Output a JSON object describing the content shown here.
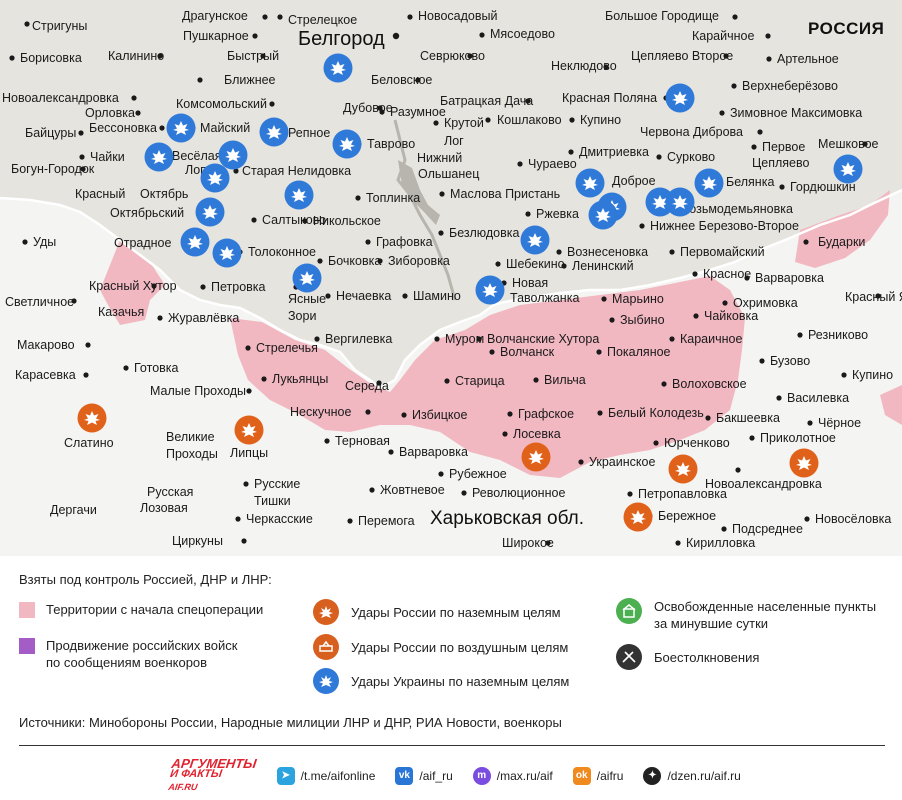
{
  "map": {
    "title_city": "Белгород",
    "region": "Харьковская обл.",
    "country": "РОССИЯ",
    "colors": {
      "territory": "#f2b8c2",
      "ukraine_strike": "#2f7ad8",
      "russia_strike": "#e0621a",
      "land": "#e6e4de",
      "outside": "#f4f4f2"
    },
    "places": [
      {
        "name": "Стригуны"
      },
      {
        "name": "Драгунское"
      },
      {
        "name": "Стрелецкое"
      },
      {
        "name": "Новосадовый"
      },
      {
        "name": "Большое Городище"
      },
      {
        "name": "Калинино"
      },
      {
        "name": "Пушкарное"
      },
      {
        "name": "Мясоедово"
      },
      {
        "name": "Карайчное"
      },
      {
        "name": "Борисовка"
      },
      {
        "name": "Быстрый"
      },
      {
        "name": "Севрюково"
      },
      {
        "name": "Неклюдово"
      },
      {
        "name": "Цепляево Второе"
      },
      {
        "name": "Артельное"
      },
      {
        "name": "Ближнее"
      },
      {
        "name": "Беловское"
      },
      {
        "name": "Верхнеберёзово"
      },
      {
        "name": "Новоалександровка"
      },
      {
        "name": "Комсомольский"
      },
      {
        "name": "Батрацкая Дача"
      },
      {
        "name": "Красная Поляна"
      },
      {
        "name": "Орловка"
      },
      {
        "name": "Дубовое"
      },
      {
        "name": "Разумное"
      },
      {
        "name": "Зимовное Максимовка"
      },
      {
        "name": "Бессоновка"
      },
      {
        "name": "Майский"
      },
      {
        "name": "Крутой"
      },
      {
        "name": "Кошлаково"
      },
      {
        "name": "Купино"
      },
      {
        "name": "Байцуры"
      },
      {
        "name": "Репное"
      },
      {
        "name": "Лог"
      },
      {
        "name": "Червона Диброва"
      },
      {
        "name": "Чайки"
      },
      {
        "name": "Весёлая"
      },
      {
        "name": "Тавровo"
      },
      {
        "name": "Нижний"
      },
      {
        "name": "Дмитриевка"
      },
      {
        "name": "Мешковое"
      },
      {
        "name": "Богун-Городок"
      },
      {
        "name": "Лопань"
      },
      {
        "name": "Старая Нелидовка"
      },
      {
        "name": "Ольшанец"
      },
      {
        "name": "Чураево"
      },
      {
        "name": "Сурково"
      },
      {
        "name": "Первое"
      },
      {
        "name": "Цепляево"
      },
      {
        "name": "Доброе"
      },
      {
        "name": "Белянка"
      },
      {
        "name": "Гордюшкин"
      },
      {
        "name": "Красный"
      },
      {
        "name": "Октябрь"
      },
      {
        "name": "Топлинка"
      },
      {
        "name": "Маслова Пристань"
      },
      {
        "name": "Октябрьский"
      },
      {
        "name": "Салтыково"
      },
      {
        "name": "Никольское"
      },
      {
        "name": "Ржевка"
      },
      {
        "name": "Козьмодемьяновка"
      },
      {
        "name": "Нижнее Березово-Второе"
      },
      {
        "name": "Уды"
      },
      {
        "name": "Отрадное"
      },
      {
        "name": "Толоконное"
      },
      {
        "name": "Графовка"
      },
      {
        "name": "Безлюдовка"
      },
      {
        "name": "Вознесеновка"
      },
      {
        "name": "Бударки"
      },
      {
        "name": "Первомайский"
      },
      {
        "name": "Шебекино"
      },
      {
        "name": "Бочковка"
      },
      {
        "name": "Зиборовка"
      },
      {
        "name": "Ленинский"
      },
      {
        "name": "Красное"
      },
      {
        "name": "Варваровка"
      },
      {
        "name": "Красный Хутор"
      },
      {
        "name": "Петровка"
      },
      {
        "name": "Ясные"
      },
      {
        "name": "Нечаевка"
      },
      {
        "name": "Шамино"
      },
      {
        "name": "Новая"
      },
      {
        "name": "Таволжанка"
      },
      {
        "name": "Марьино"
      },
      {
        "name": "Охримовка"
      },
      {
        "name": "Красный Яр"
      },
      {
        "name": "Светличное"
      },
      {
        "name": "Казачья"
      },
      {
        "name": "Зори"
      },
      {
        "name": "Журавлёвка"
      },
      {
        "name": "Зыбино"
      },
      {
        "name": "Чайковка"
      },
      {
        "name": "Резниково"
      },
      {
        "name": "Вергилевка"
      },
      {
        "name": "Муром"
      },
      {
        "name": "Волчанские Хутора"
      },
      {
        "name": "Караичное"
      },
      {
        "name": "Макарово"
      },
      {
        "name": "Стрелечья"
      },
      {
        "name": "Волчанск"
      },
      {
        "name": "Покаляное"
      },
      {
        "name": "Бузово"
      },
      {
        "name": "Готовка"
      },
      {
        "name": "Карасевка"
      },
      {
        "name": "Лукьянцы"
      },
      {
        "name": "Старица"
      },
      {
        "name": "Вильча"
      },
      {
        "name": "Купино"
      },
      {
        "name": "Волоховское"
      },
      {
        "name": "Малые Проходы"
      },
      {
        "name": "Середа"
      },
      {
        "name": "Василевка"
      },
      {
        "name": "Нескучное"
      },
      {
        "name": "Избицкое"
      },
      {
        "name": "Графское"
      },
      {
        "name": "Белый Колодезь"
      },
      {
        "name": "Бакшеевка"
      },
      {
        "name": "Слатино"
      },
      {
        "name": "Великие"
      },
      {
        "name": "Проходы"
      },
      {
        "name": "Липцы"
      },
      {
        "name": "Терновая"
      },
      {
        "name": "Лосевка"
      },
      {
        "name": "Юрченково"
      },
      {
        "name": "Приколотное"
      },
      {
        "name": "Чёрное"
      },
      {
        "name": "Варваровка"
      },
      {
        "name": "Рубежное"
      },
      {
        "name": "Украинское"
      },
      {
        "name": "Новоалександровка"
      },
      {
        "name": "Русская"
      },
      {
        "name": "Русские"
      },
      {
        "name": "Лозовая"
      },
      {
        "name": "Тишки"
      },
      {
        "name": "Жовтневое"
      },
      {
        "name": "Революционное"
      },
      {
        "name": "Петропавловка"
      },
      {
        "name": "Дергачи"
      },
      {
        "name": "Бережное"
      },
      {
        "name": "Новосёловка"
      },
      {
        "name": "Черкасские"
      },
      {
        "name": "Перемога"
      },
      {
        "name": "Подсреднее"
      },
      {
        "name": "Широкое"
      },
      {
        "name": "Кирилловка"
      },
      {
        "name": "Циркуны"
      }
    ]
  },
  "legend": {
    "title": "Взяты под контроль Россией, ДНР и ЛНР:",
    "territory_label": "Территории с начала спецоперации",
    "advance_line1": "Продвижение российских войск",
    "advance_line2": "по сообщениям военкоров",
    "russia_ground": "Удары России по наземным целям",
    "russia_air": "Удары России по воздушным целям",
    "ukraine_ground": "Удары Украины по наземным целям",
    "liberated_line1": "Освобожденные населенные пункты",
    "liberated_line2": "за минувшие сутки",
    "clashes": "Боестолкновения",
    "colors": {
      "territory": "#f2b8c2",
      "advance": "#a45cc6",
      "russia": "#d8601e",
      "ukraine": "#2f7ad8",
      "liberated": "#4caf50",
      "clashes": "#333333"
    }
  },
  "sources": "Источники: Минобороны России, Народные милиции ЛНР и ДНР, РИА Новости, военкоры",
  "footer": {
    "logo_line1": "АРГУМЕНТЫ",
    "logo_line2": "И ФАКТЫ",
    "logo_line3": "AIF.RU",
    "links": [
      {
        "icon": "telegram-icon",
        "text": "/t.me/aifonline"
      },
      {
        "icon": "vk-icon",
        "text": "/aif_ru"
      },
      {
        "icon": "max-icon",
        "text": "/max.ru/aif"
      },
      {
        "icon": "ok-icon",
        "text": "/aifru"
      },
      {
        "icon": "dzen-icon",
        "text": "/dzen.ru/aif.ru"
      }
    ]
  }
}
